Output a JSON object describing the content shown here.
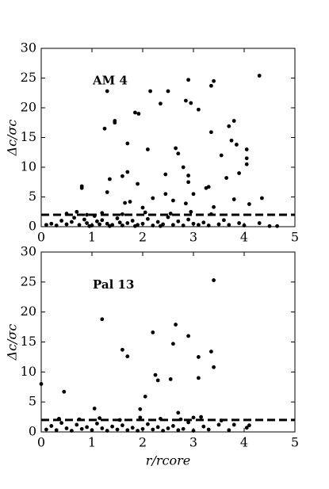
{
  "chart_data": [
    {
      "type": "scatter",
      "annotation": "AM 4",
      "ylabel": "Δc/σc",
      "color": "#000000",
      "threshold": 2,
      "xlim": [
        0,
        5
      ],
      "ylim": [
        0,
        30
      ],
      "xticks": [
        0,
        1,
        2,
        3,
        4,
        5
      ],
      "yticks": [
        0,
        5,
        10,
        15,
        20,
        25,
        30
      ],
      "x": [
        1.25,
        1.45,
        1.45,
        1.3,
        1.85,
        1.92,
        2.15,
        2.35,
        2.5,
        2.9,
        2.85,
        2.95,
        3.35,
        3.4,
        4.3,
        3.1,
        2.1,
        1.7,
        1.35,
        0.8,
        0.8,
        1.3,
        1.6,
        1.7,
        1.9,
        2.45,
        2.65,
        2.7,
        2.8,
        2.9,
        2.9,
        3.35,
        3.3,
        3.25,
        3.55,
        3.7,
        3.75,
        3.8,
        3.85,
        3.9,
        4.05,
        4.05,
        4.05,
        3.65,
        4.35,
        4.1,
        3.8,
        3.4,
        2.45,
        2.6,
        2.85,
        3.0,
        2.2,
        1.65,
        1.75,
        2.0,
        0.7,
        4.5,
        4.65,
        4.3,
        0.1,
        0.2,
        0.3,
        0.4,
        0.5,
        0.6,
        0.65,
        0.75,
        0.85,
        0.9,
        1.0,
        1.05,
        1.1,
        1.15,
        1.2,
        1.3,
        1.4,
        1.5,
        1.55,
        1.6,
        1.7,
        1.8,
        1.9,
        2.0,
        2.1,
        2.2,
        2.3,
        2.4,
        2.5,
        2.6,
        2.7,
        2.8,
        2.9,
        3.0,
        3.1,
        3.2,
        3.3,
        3.5,
        3.6,
        3.7,
        3.9,
        4.0,
        0.5,
        0.9,
        1.2,
        1.6,
        2.05,
        2.55,
        2.95,
        3.35,
        0.95,
        1.35,
        1.85,
        2.35
      ],
      "values": [
        16.5,
        17.5,
        17.8,
        22.8,
        19.2,
        19.0,
        22.8,
        20.7,
        22.8,
        24.7,
        21.2,
        20.8,
        23.7,
        24.5,
        25.4,
        19.7,
        13.0,
        14.0,
        8.0,
        6.8,
        6.5,
        5.8,
        8.5,
        9.2,
        7.2,
        8.8,
        13.2,
        12.3,
        10.0,
        8.6,
        7.5,
        15.9,
        6.7,
        6.5,
        12.0,
        16.9,
        14.5,
        17.8,
        13.8,
        9.0,
        13.0,
        11.5,
        10.5,
        8.2,
        4.8,
        3.8,
        4.6,
        3.3,
        5.5,
        4.4,
        3.9,
        5.5,
        4.8,
        4.0,
        4.2,
        3.2,
        2.5,
        0.1,
        0.1,
        0.6,
        0.3,
        0.5,
        0.2,
        1.0,
        0.4,
        0.8,
        1.5,
        0.3,
        1.2,
        0.6,
        0.2,
        1.8,
        0.9,
        0.4,
        1.1,
        0.5,
        0.3,
        1.4,
        0.7,
        0.2,
        0.6,
        1.0,
        0.3,
        0.5,
        1.3,
        0.2,
        0.8,
        0.4,
        1.6,
        0.3,
        0.9,
        0.2,
        1.2,
        0.5,
        0.3,
        0.7,
        0.2,
        0.4,
        1.1,
        0.3,
        0.6,
        0.2,
        2.2,
        2.0,
        2.3,
        2.1,
        2.4,
        2.2,
        2.5,
        2.1,
        0.1,
        0.1,
        0.1,
        0.1
      ]
    },
    {
      "type": "scatter",
      "annotation": "Pal 13",
      "ylabel": "Δc/σc",
      "xlabel": "r/rcore",
      "color": "#000000",
      "threshold": 2,
      "xlim": [
        0,
        5
      ],
      "ylim": [
        0,
        30
      ],
      "xticks": [
        0,
        1,
        2,
        3,
        4,
        5
      ],
      "yticks": [
        0,
        5,
        10,
        15,
        20,
        25,
        30
      ],
      "x": [
        0.0,
        0.45,
        1.2,
        1.6,
        1.7,
        2.2,
        2.25,
        2.3,
        2.55,
        2.6,
        2.65,
        2.9,
        3.1,
        3.1,
        3.35,
        3.4,
        3.4,
        1.05,
        2.05,
        1.95,
        2.7,
        3.0,
        3.55,
        3.8,
        4.05,
        4.1,
        0.1,
        0.2,
        0.3,
        0.4,
        0.5,
        0.6,
        0.7,
        0.8,
        0.9,
        1.0,
        1.1,
        1.2,
        1.3,
        1.4,
        1.5,
        1.6,
        1.7,
        1.8,
        1.9,
        2.0,
        2.1,
        2.2,
        2.3,
        2.4,
        2.5,
        2.6,
        2.7,
        2.8,
        2.9,
        3.0,
        3.2,
        3.3,
        3.5,
        3.7,
        0.35,
        0.75,
        1.15,
        1.55,
        1.95,
        2.35,
        2.75,
        3.15
      ],
      "values": [
        8.0,
        6.7,
        18.8,
        13.7,
        12.6,
        16.6,
        9.5,
        8.6,
        8.8,
        14.7,
        17.9,
        16.0,
        12.5,
        9.0,
        13.4,
        10.8,
        25.3,
        3.9,
        5.9,
        3.8,
        3.2,
        2.4,
        1.9,
        1.2,
        0.7,
        1.1,
        0.4,
        1.0,
        0.3,
        1.5,
        0.6,
        0.2,
        1.2,
        0.5,
        0.8,
        0.3,
        1.4,
        0.6,
        0.2,
        0.9,
        0.4,
        1.1,
        0.3,
        0.7,
        0.2,
        0.5,
        1.3,
        0.4,
        0.8,
        0.2,
        0.6,
        1.0,
        0.3,
        0.5,
        1.6,
        0.2,
        0.9,
        0.4,
        1.2,
        0.3,
        2.2,
        2.1,
        2.3,
        2.0,
        2.4,
        2.2,
        2.1,
        2.5
      ]
    }
  ]
}
